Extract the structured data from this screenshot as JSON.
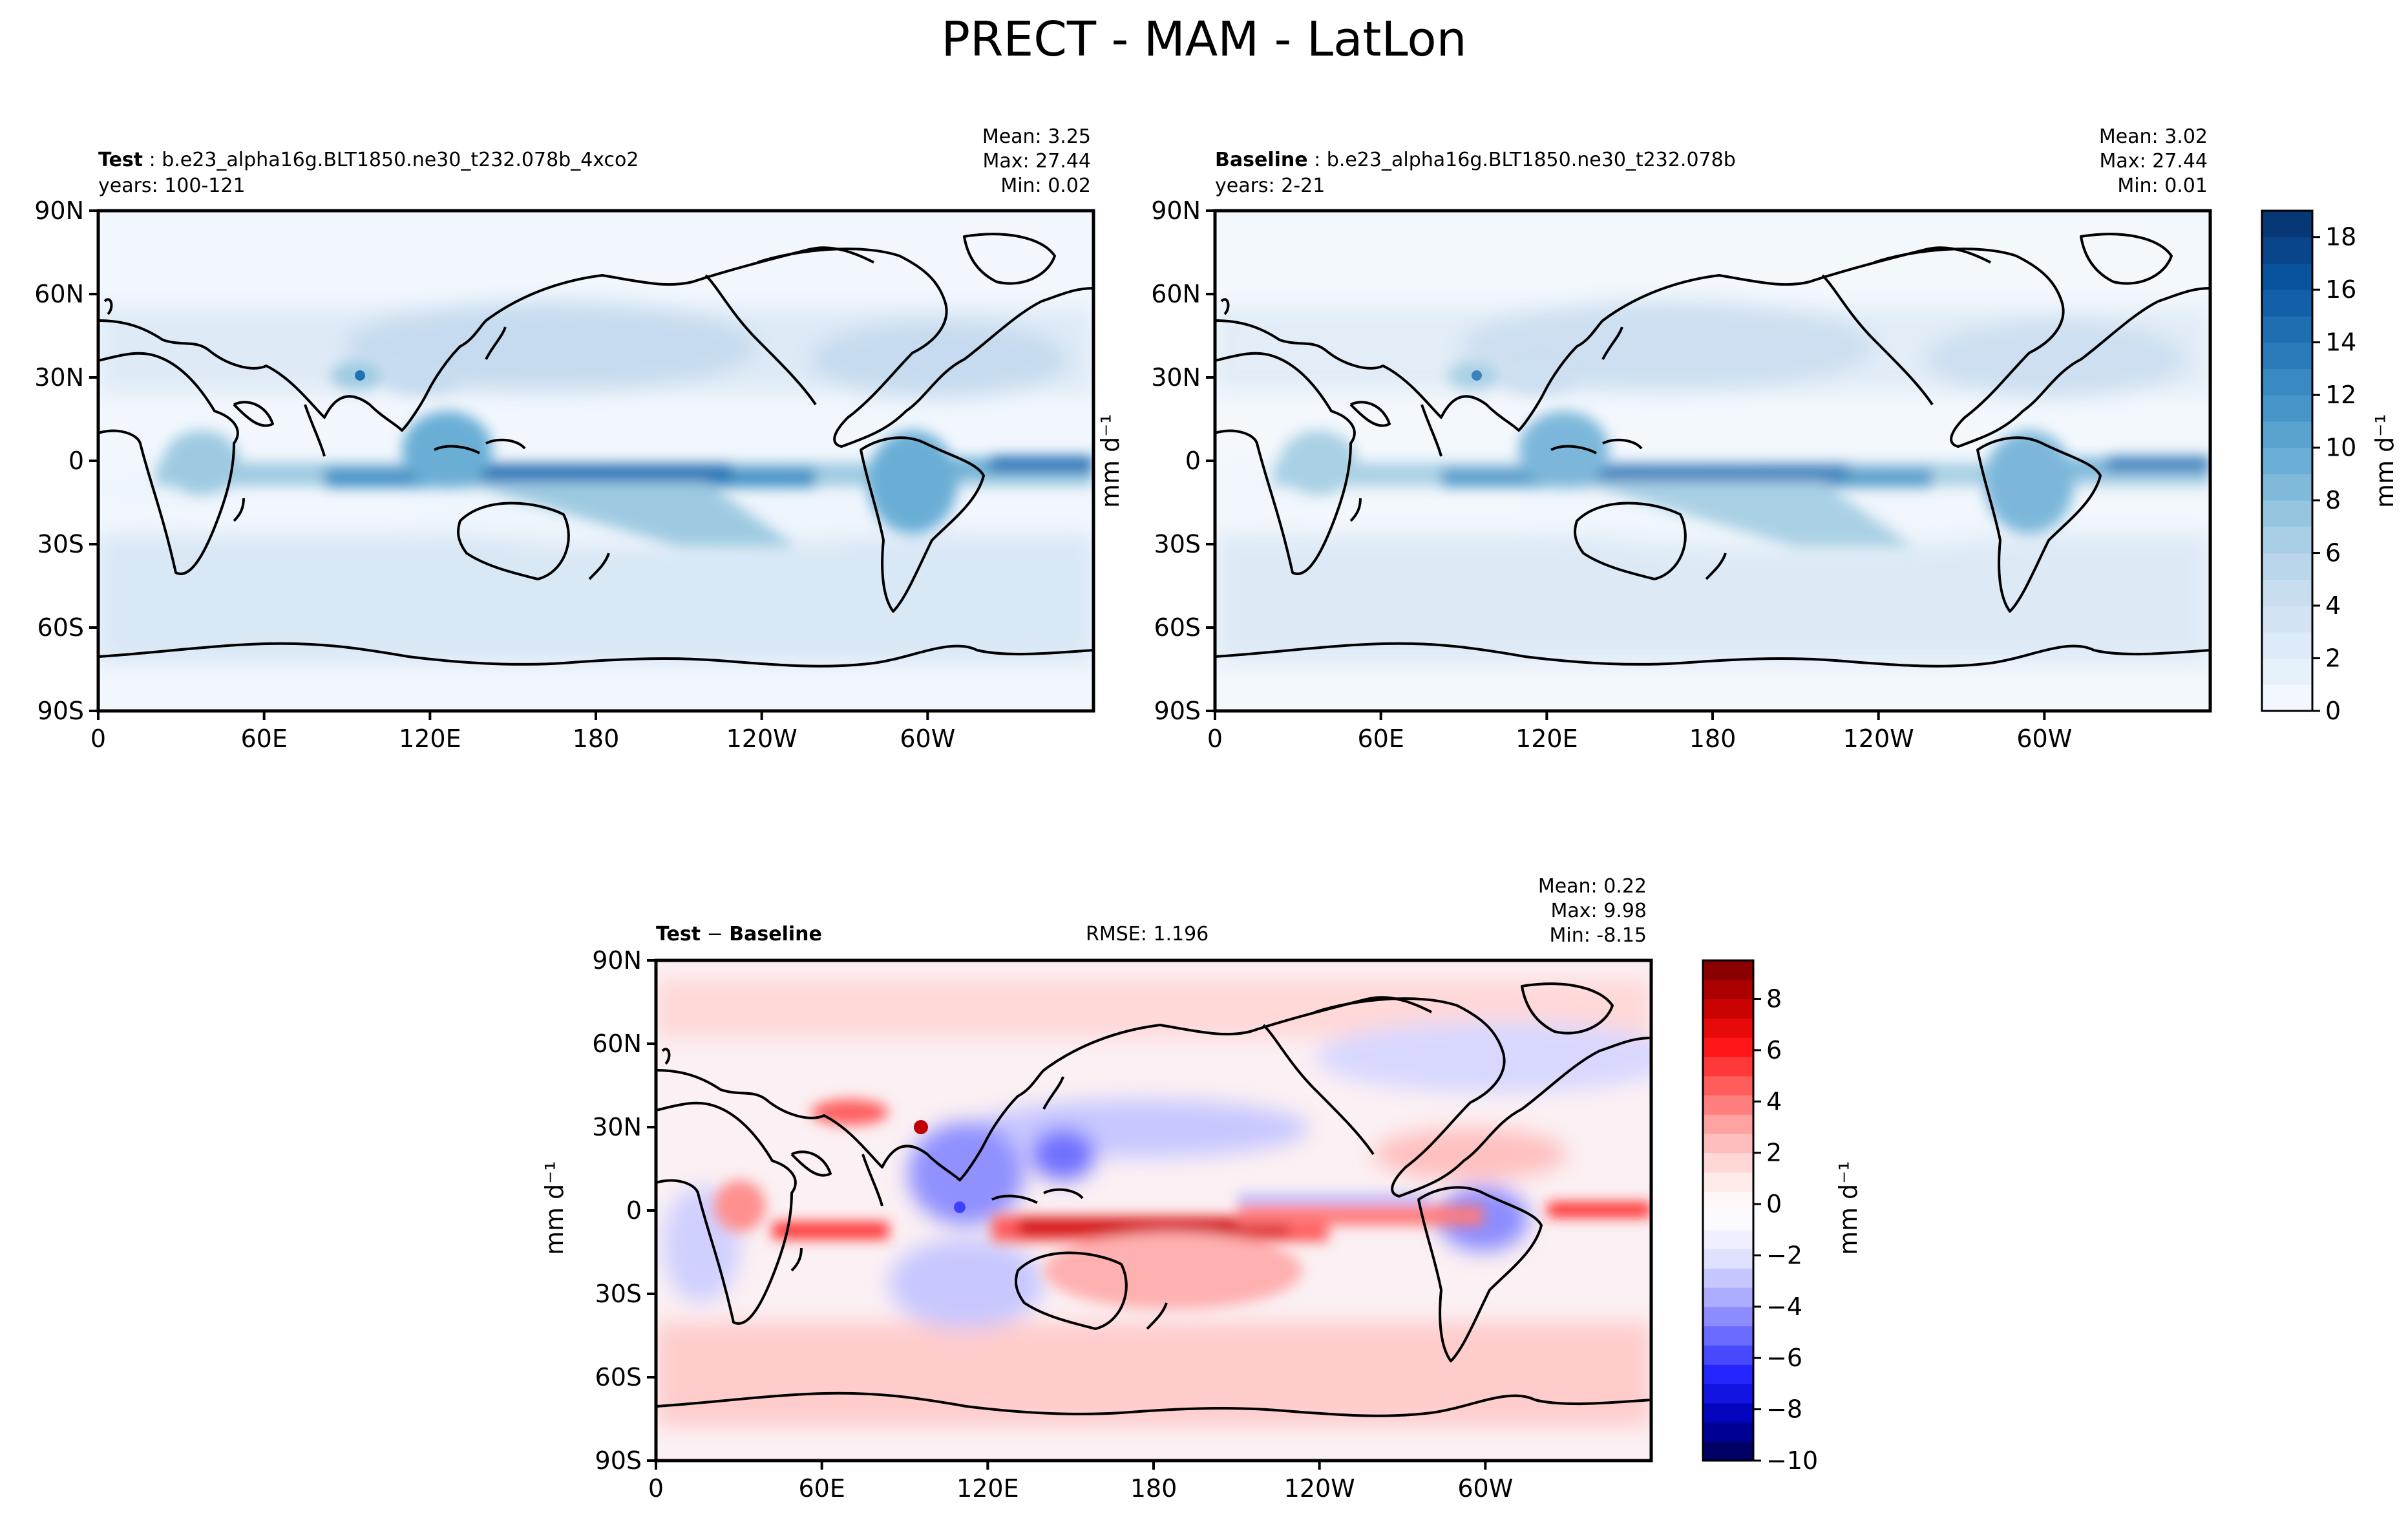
{
  "figure": {
    "title": "PRECT - MAM - LatLon"
  },
  "panels": {
    "test": {
      "label": "Test",
      "case": " : b.e23_alpha16g.BLT1850.ne30_t232.078b_4xco2",
      "years": "years: 100-121",
      "mean": "Mean:  3.25",
      "max": "Max: 27.44",
      "min": "Min:  0.02"
    },
    "baseline": {
      "label": "Baseline",
      "case": " : b.e23_alpha16g.BLT1850.ne30_t232.078b",
      "years": "years: 2-21",
      "mean": "Mean:  3.02",
      "max": "Max: 27.44",
      "min": "Min:  0.01"
    },
    "diff": {
      "label_a": "Test",
      "label_op": " − ",
      "label_b": "Baseline",
      "rmse": "RMSE: 1.196",
      "mean": "Mean:  0.22",
      "max": "Max:  9.98",
      "min": "Min: -8.15"
    }
  },
  "units": "mm d⁻¹",
  "colors": {
    "blue_scale": [
      "#f7fbff",
      "#deebf7",
      "#c6dbef",
      "#9ecae1",
      "#6baed6",
      "#4292c6",
      "#2171b5",
      "#08519c",
      "#08306b"
    ],
    "diff_scale": [
      "#00004d",
      "#0000b3",
      "#1f1fff",
      "#6b6bff",
      "#b3b3ff",
      "#e8e8ff",
      "#ffffff",
      "#ffe0e0",
      "#ffa8a8",
      "#ff5c5c",
      "#ff1010",
      "#c00000",
      "#7a0000"
    ],
    "coast": "#000000"
  },
  "chart_data": [
    {
      "type": "heatmap",
      "name": "Test",
      "xlabel": "",
      "ylabel": "",
      "xticks": [
        "0",
        "60E",
        "120E",
        "180",
        "120W",
        "60W"
      ],
      "yticks": [
        "90N",
        "60N",
        "30N",
        "0",
        "30S",
        "60S",
        "90S"
      ],
      "xlim": [
        0,
        360
      ],
      "ylim": [
        -90,
        90
      ],
      "stats": {
        "mean": 3.25,
        "max": 27.44,
        "min": 0.02
      },
      "colorbar": "shared_blue"
    },
    {
      "type": "heatmap",
      "name": "Baseline",
      "xlabel": "",
      "ylabel": "mm d⁻¹",
      "xticks": [
        "0",
        "60E",
        "120E",
        "180",
        "120W",
        "60W"
      ],
      "yticks": [
        "90N",
        "60N",
        "30N",
        "0",
        "30S",
        "60S",
        "90S"
      ],
      "xlim": [
        0,
        360
      ],
      "ylim": [
        -90,
        90
      ],
      "stats": {
        "mean": 3.02,
        "max": 27.44,
        "min": 0.01
      },
      "colorbar": {
        "ticks": [
          "0",
          "2",
          "4",
          "6",
          "8",
          "10",
          "12",
          "14",
          "16",
          "18"
        ],
        "range": [
          0,
          19
        ],
        "label": "mm d⁻¹"
      }
    },
    {
      "type": "heatmap",
      "name": "Test − Baseline",
      "xlabel": "",
      "ylabel": "mm d⁻¹",
      "xticks": [
        "0",
        "60E",
        "120E",
        "180",
        "120W",
        "60W"
      ],
      "yticks": [
        "90N",
        "60N",
        "30N",
        "0",
        "30S",
        "60S",
        "90S"
      ],
      "xlim": [
        0,
        360
      ],
      "ylim": [
        -90,
        90
      ],
      "stats": {
        "rmse": 1.196,
        "mean": 0.22,
        "max": 9.98,
        "min": -8.15
      },
      "colorbar": {
        "ticks": [
          "8",
          "6",
          "4",
          "2",
          "0",
          "−2",
          "−4",
          "−6",
          "−8",
          "−10"
        ],
        "range": [
          -10,
          9.5
        ],
        "label": "mm d⁻¹"
      }
    }
  ]
}
